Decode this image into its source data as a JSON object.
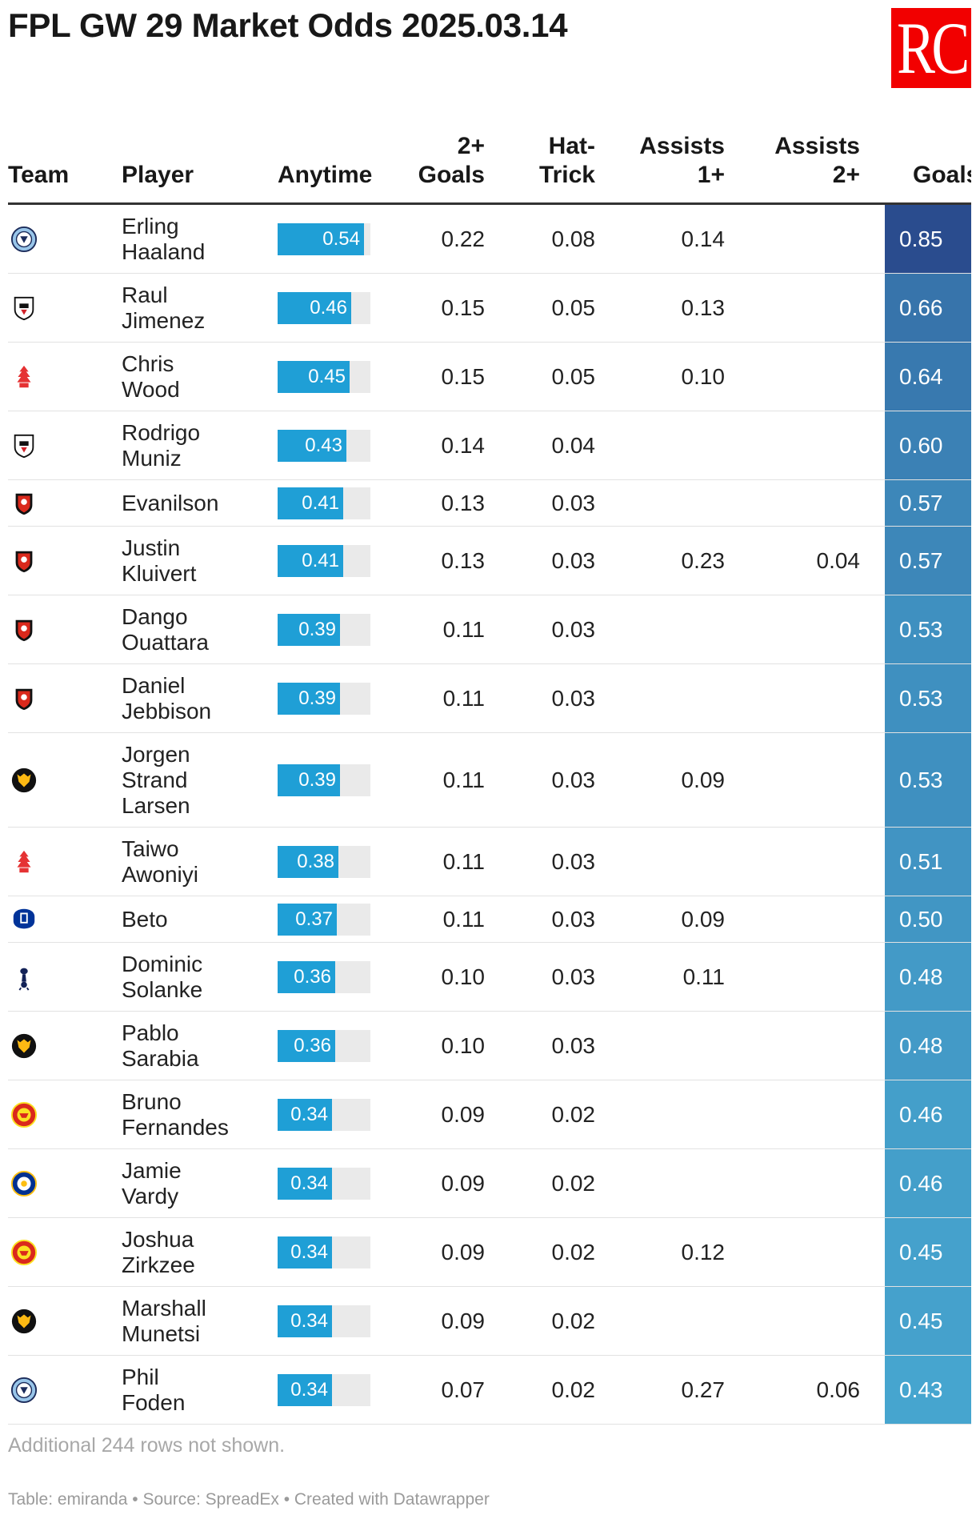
{
  "title": "FPL GW 29 Market Odds 2025.03.14",
  "logo_text": "RC",
  "colors": {
    "logo_bg": "#f20000",
    "bar": "#1f9fd6",
    "bar_track": "#eaeaea",
    "goals_scale": [
      "#46a5cf",
      "#2a4c8e"
    ]
  },
  "headers": {
    "team": "Team",
    "player": "Player",
    "anytime": "Anytime",
    "goals2_line1": "2+",
    "goals2_line2": "Goals",
    "hattrick_line1": "Hat-",
    "hattrick_line2": "Trick",
    "assists1_line1": "Assists",
    "assists1_line2": "1+",
    "assists2_line1": "Assists",
    "assists2_line2": "2+",
    "goals": "Goals"
  },
  "chart_data": {
    "type": "table",
    "columns": [
      "Team",
      "Player",
      "Anytime",
      "2+ Goals",
      "Hat-Trick",
      "Assists 1+",
      "Assists 2+",
      "Goals"
    ],
    "rows": [
      {
        "team_icon": "man-city-crest-icon",
        "player": [
          "Erling",
          "Haaland"
        ],
        "anytime": 0.54,
        "goals2": "0.22",
        "hattrick": "0.08",
        "assists1": "0.14",
        "assists2": "",
        "goals": "0.85"
      },
      {
        "team_icon": "fulham-crest-icon",
        "player": [
          "Raul",
          "Jimenez"
        ],
        "anytime": 0.46,
        "goals2": "0.15",
        "hattrick": "0.05",
        "assists1": "0.13",
        "assists2": "",
        "goals": "0.66"
      },
      {
        "team_icon": "nottingham-forest-crest-icon",
        "player": [
          "Chris",
          "Wood"
        ],
        "anytime": 0.45,
        "goals2": "0.15",
        "hattrick": "0.05",
        "assists1": "0.10",
        "assists2": "",
        "goals": "0.64"
      },
      {
        "team_icon": "fulham-crest-icon",
        "player": [
          "Rodrigo",
          "Muniz"
        ],
        "anytime": 0.43,
        "goals2": "0.14",
        "hattrick": "0.04",
        "assists1": "",
        "assists2": "",
        "goals": "0.60"
      },
      {
        "team_icon": "bournemouth-crest-icon",
        "player": [
          "Evanilson"
        ],
        "anytime": 0.41,
        "goals2": "0.13",
        "hattrick": "0.03",
        "assists1": "",
        "assists2": "",
        "goals": "0.57"
      },
      {
        "team_icon": "bournemouth-crest-icon",
        "player": [
          "Justin",
          "Kluivert"
        ],
        "anytime": 0.41,
        "goals2": "0.13",
        "hattrick": "0.03",
        "assists1": "0.23",
        "assists2": "0.04",
        "goals": "0.57"
      },
      {
        "team_icon": "bournemouth-crest-icon",
        "player": [
          "Dango",
          "Ouattara"
        ],
        "anytime": 0.39,
        "goals2": "0.11",
        "hattrick": "0.03",
        "assists1": "",
        "assists2": "",
        "goals": "0.53"
      },
      {
        "team_icon": "bournemouth-crest-icon",
        "player": [
          "Daniel",
          "Jebbison"
        ],
        "anytime": 0.39,
        "goals2": "0.11",
        "hattrick": "0.03",
        "assists1": "",
        "assists2": "",
        "goals": "0.53"
      },
      {
        "team_icon": "wolves-crest-icon",
        "player": [
          "Jorgen",
          "Strand",
          "Larsen"
        ],
        "anytime": 0.39,
        "goals2": "0.11",
        "hattrick": "0.03",
        "assists1": "0.09",
        "assists2": "",
        "goals": "0.53"
      },
      {
        "team_icon": "nottingham-forest-crest-icon",
        "player": [
          "Taiwo",
          "Awoniyi"
        ],
        "anytime": 0.38,
        "goals2": "0.11",
        "hattrick": "0.03",
        "assists1": "",
        "assists2": "",
        "goals": "0.51"
      },
      {
        "team_icon": "everton-crest-icon",
        "player": [
          "Beto"
        ],
        "anytime": 0.37,
        "goals2": "0.11",
        "hattrick": "0.03",
        "assists1": "0.09",
        "assists2": "",
        "goals": "0.50"
      },
      {
        "team_icon": "tottenham-crest-icon",
        "player": [
          "Dominic",
          "Solanke"
        ],
        "anytime": 0.36,
        "goals2": "0.10",
        "hattrick": "0.03",
        "assists1": "0.11",
        "assists2": "",
        "goals": "0.48"
      },
      {
        "team_icon": "wolves-crest-icon",
        "player": [
          "Pablo",
          "Sarabia"
        ],
        "anytime": 0.36,
        "goals2": "0.10",
        "hattrick": "0.03",
        "assists1": "",
        "assists2": "",
        "goals": "0.48"
      },
      {
        "team_icon": "man-united-crest-icon",
        "player": [
          "Bruno",
          "Fernandes"
        ],
        "anytime": 0.34,
        "goals2": "0.09",
        "hattrick": "0.02",
        "assists1": "",
        "assists2": "",
        "goals": "0.46"
      },
      {
        "team_icon": "leicester-crest-icon",
        "player": [
          "Jamie",
          "Vardy"
        ],
        "anytime": 0.34,
        "goals2": "0.09",
        "hattrick": "0.02",
        "assists1": "",
        "assists2": "",
        "goals": "0.46"
      },
      {
        "team_icon": "man-united-crest-icon",
        "player": [
          "Joshua",
          "Zirkzee"
        ],
        "anytime": 0.34,
        "goals2": "0.09",
        "hattrick": "0.02",
        "assists1": "0.12",
        "assists2": "",
        "goals": "0.45"
      },
      {
        "team_icon": "wolves-crest-icon",
        "player": [
          "Marshall",
          "Munetsi"
        ],
        "anytime": 0.34,
        "goals2": "0.09",
        "hattrick": "0.02",
        "assists1": "",
        "assists2": "",
        "goals": "0.45"
      },
      {
        "team_icon": "man-city-crest-icon",
        "player": [
          "Phil",
          "Foden"
        ],
        "anytime": 0.34,
        "goals2": "0.07",
        "hattrick": "0.02",
        "assists1": "0.27",
        "assists2": "0.06",
        "goals": "0.43"
      }
    ]
  },
  "note": "Additional 244 rows not shown.",
  "footer": "Table: emiranda • Source: SpreadEx • Created with Datawrapper"
}
